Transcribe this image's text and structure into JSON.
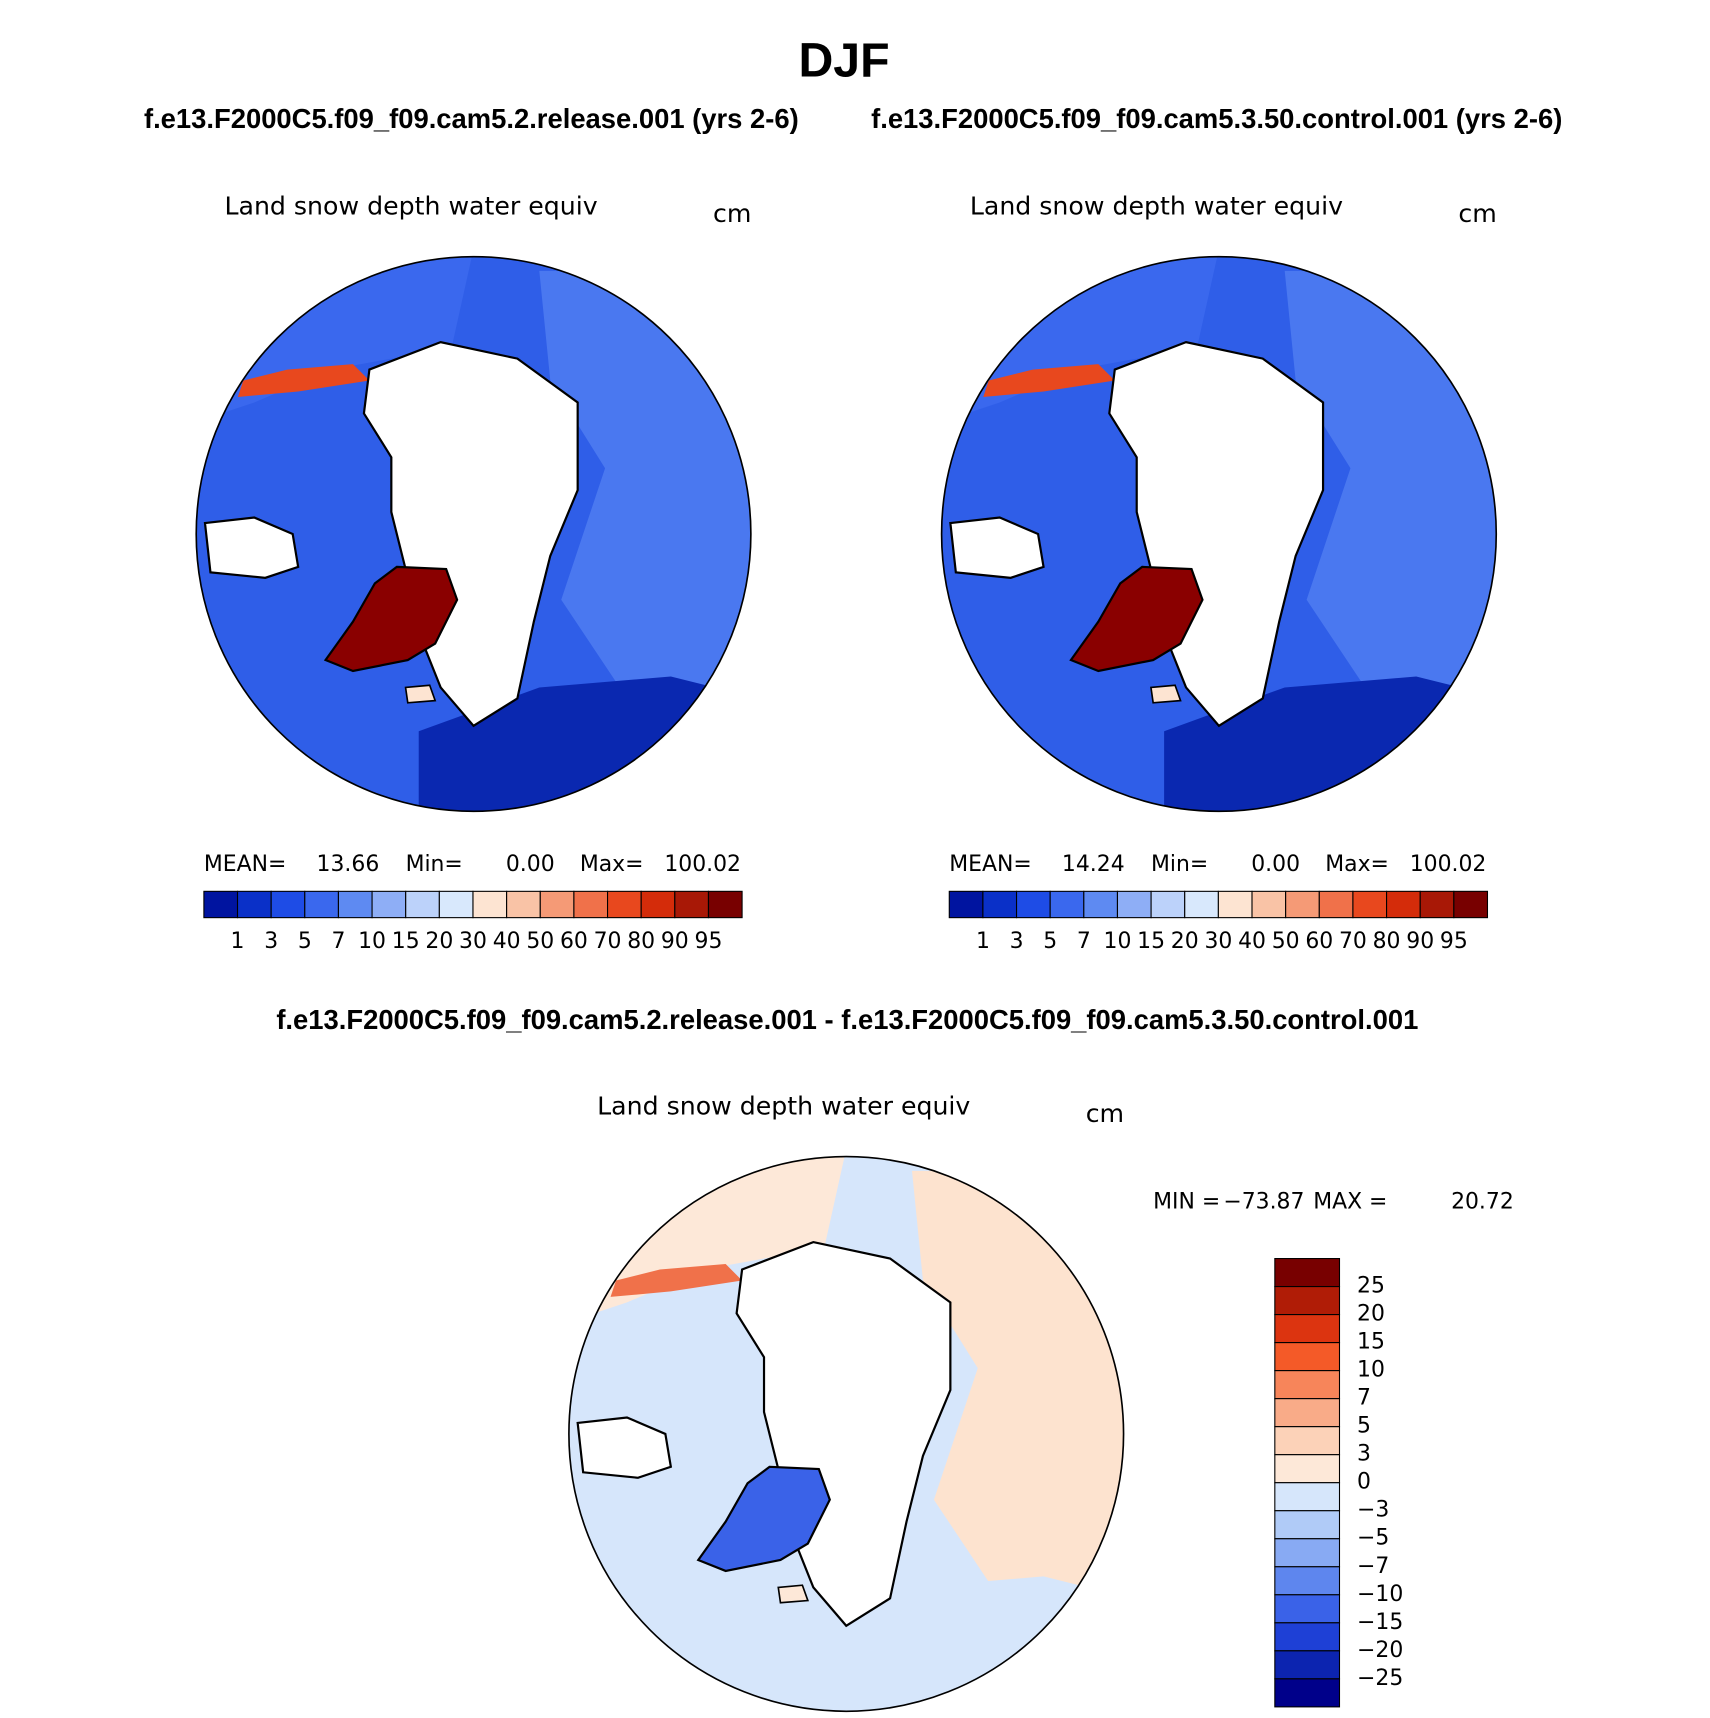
{
  "title": "DJF",
  "panels": [
    {
      "case": "f.e13.F2000C5.f09_f09.cam5.2.release.001 (yrs 2-6)",
      "variable": "Land snow depth water equiv",
      "units": "cm",
      "stats": {
        "mean_label": "MEAN=",
        "mean": "13.66",
        "min_label": "Min=",
        "min": "0.00",
        "max_label": "Max=",
        "max": "100.02"
      },
      "colorbar": {
        "colors": [
          "#00007a",
          "#0014a0",
          "#0a30c8",
          "#1e4ce6",
          "#3a68ee",
          "#5e8af2",
          "#8eaef6",
          "#bcd2fa",
          "#d8e8fc",
          "#fde4d2",
          "#f9c3a6",
          "#f59a76",
          "#f0714a",
          "#e8481e",
          "#d42c0a",
          "#a81806",
          "#780000"
        ],
        "labels": [
          "1",
          "3",
          "5",
          "7",
          "10",
          "15",
          "20",
          "30",
          "40",
          "50",
          "60",
          "70",
          "80",
          "90",
          "95"
        ]
      }
    },
    {
      "case": "f.e13.F2000C5.f09_f09.cam5.3.50.control.001 (yrs 2-6)",
      "variable": "Land snow depth water equiv",
      "units": "cm",
      "stats": {
        "mean_label": "MEAN=",
        "mean": "14.24",
        "min_label": "Min=",
        "min": "0.00",
        "max_label": "Max=",
        "max": "100.02"
      },
      "colorbar": {
        "colors": [
          "#00007a",
          "#0014a0",
          "#0a30c8",
          "#1e4ce6",
          "#3a68ee",
          "#5e8af2",
          "#8eaef6",
          "#bcd2fa",
          "#d8e8fc",
          "#fde4d2",
          "#f9c3a6",
          "#f59a76",
          "#f0714a",
          "#e8481e",
          "#d42c0a",
          "#a81806",
          "#780000"
        ],
        "labels": [
          "1",
          "3",
          "5",
          "7",
          "10",
          "15",
          "20",
          "30",
          "40",
          "50",
          "60",
          "70",
          "80",
          "90",
          "95"
        ]
      }
    }
  ],
  "difference": {
    "case": "f.e13.F2000C5.f09_f09.cam5.2.release.001 - f.e13.F2000C5.f09_f09.cam5.3.50.control.001",
    "variable": "Land snow depth water equiv",
    "units": "cm",
    "stats": {
      "min_label": "MIN =",
      "min": "−73.87",
      "max_label": "MAX =",
      "max": "20.72"
    },
    "colorbar": {
      "colors": [
        "#780000",
        "#b01c06",
        "#dc3410",
        "#f45a28",
        "#f7855a",
        "#f9ab88",
        "#fcd2b8",
        "#fde8d8",
        "#d6e6fb",
        "#b0cbf7",
        "#88aaf3",
        "#5e86ee",
        "#3a62e8",
        "#1e40d6",
        "#0c24b0",
        "#00008a"
      ],
      "labels": [
        "25",
        "20",
        "15",
        "10",
        "7",
        "5",
        "3",
        "0",
        "−3",
        "−5",
        "−7",
        "−10",
        "−15",
        "−20",
        "−25"
      ]
    }
  }
}
